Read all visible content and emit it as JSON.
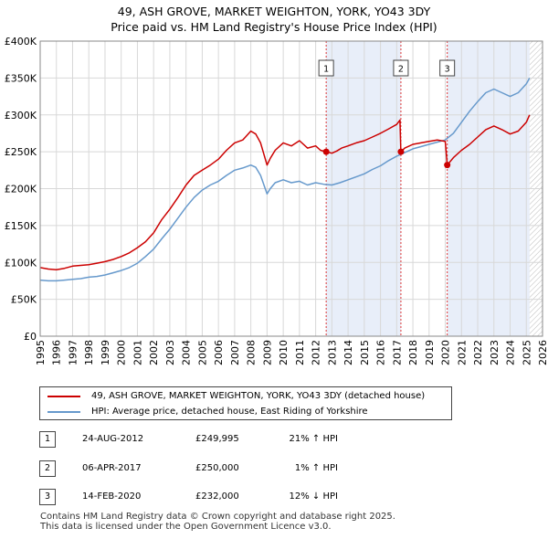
{
  "title_line1": "49, ASH GROVE, MARKET WEIGHTON, YORK, YO43 3DY",
  "title_line2": "Price paid vs. HM Land Registry's House Price Index (HPI)",
  "chart_data": {
    "type": "line",
    "title": "49, ASH GROVE, MARKET WEIGHTON, YORK, YO43 3DY",
    "subtitle": "Price paid vs. HM Land Registry's House Price Index (HPI)",
    "xlabel": "",
    "ylabel": "",
    "xlim": [
      1995,
      2026
    ],
    "ylim": [
      0,
      400000
    ],
    "x_ticks": [
      1995,
      1996,
      1997,
      1998,
      1999,
      2000,
      2001,
      2002,
      2003,
      2004,
      2005,
      2006,
      2007,
      2008,
      2009,
      2010,
      2011,
      2012,
      2013,
      2014,
      2015,
      2016,
      2017,
      2018,
      2019,
      2020,
      2021,
      2022,
      2023,
      2024,
      2025,
      2026
    ],
    "y_ticks": [
      {
        "value": 0,
        "label": "£0"
      },
      {
        "value": 50000,
        "label": "£50K"
      },
      {
        "value": 100000,
        "label": "£100K"
      },
      {
        "value": 150000,
        "label": "£150K"
      },
      {
        "value": 200000,
        "label": "£200K"
      },
      {
        "value": 250000,
        "label": "£250K"
      },
      {
        "value": 300000,
        "label": "£300K"
      },
      {
        "value": 350000,
        "label": "£350K"
      },
      {
        "value": 400000,
        "label": "£400K"
      }
    ],
    "grid": true,
    "shaded_regions": [
      {
        "from": 2012.65,
        "to": 2017.26
      },
      {
        "from": 2020.12,
        "to": 2025.2
      }
    ],
    "hatched_from": 2025.2,
    "series": [
      {
        "name": "49, ASH GROVE, MARKET WEIGHTON, YORK, YO43 3DY (detached house)",
        "color": "#cc0000",
        "x": [
          1995.0,
          1995.5,
          1996.0,
          1996.5,
          1997.0,
          1997.5,
          1998.0,
          1998.5,
          1999.0,
          1999.5,
          2000.0,
          2000.5,
          2001.0,
          2001.5,
          2002.0,
          2002.5,
          2003.0,
          2003.5,
          2004.0,
          2004.5,
          2005.0,
          2005.5,
          2006.0,
          2006.5,
          2007.0,
          2007.5,
          2008.0,
          2008.3,
          2008.6,
          2009.0,
          2009.2,
          2009.5,
          2010.0,
          2010.5,
          2011.0,
          2011.5,
          2012.0,
          2012.3,
          2012.65,
          2013.0,
          2013.3,
          2013.6,
          2014.0,
          2014.5,
          2015.0,
          2015.5,
          2016.0,
          2016.5,
          2017.0,
          2017.2,
          2017.26,
          2017.5,
          2018.0,
          2018.5,
          2019.0,
          2019.5,
          2020.0,
          2020.12,
          2020.5,
          2021.0,
          2021.5,
          2022.0,
          2022.5,
          2023.0,
          2023.5,
          2024.0,
          2024.5,
          2025.0,
          2025.2
        ],
        "values": [
          93000,
          91000,
          90000,
          92000,
          95000,
          96000,
          97000,
          99000,
          101000,
          104000,
          108000,
          113000,
          120000,
          128000,
          140000,
          158000,
          172000,
          188000,
          205000,
          218000,
          225000,
          232000,
          240000,
          252000,
          262000,
          266000,
          278000,
          274000,
          262000,
          232000,
          241000,
          252000,
          262000,
          258000,
          265000,
          255000,
          258000,
          252000,
          249995,
          248000,
          251000,
          255000,
          258000,
          262000,
          265000,
          270000,
          275000,
          281000,
          287000,
          293000,
          250000,
          255000,
          260000,
          262000,
          264000,
          266000,
          264000,
          232000,
          242000,
          252000,
          260000,
          270000,
          280000,
          285000,
          280000,
          274000,
          278000,
          290000,
          300000
        ]
      },
      {
        "name": "HPI: Average price, detached house, East Riding of Yorkshire",
        "color": "#6699cc",
        "x": [
          1995.0,
          1995.5,
          1996.0,
          1996.5,
          1997.0,
          1997.5,
          1998.0,
          1998.5,
          1999.0,
          1999.5,
          2000.0,
          2000.5,
          2001.0,
          2001.5,
          2002.0,
          2002.5,
          2003.0,
          2003.5,
          2004.0,
          2004.5,
          2005.0,
          2005.5,
          2006.0,
          2006.5,
          2007.0,
          2007.5,
          2008.0,
          2008.3,
          2008.6,
          2009.0,
          2009.2,
          2009.5,
          2010.0,
          2010.5,
          2011.0,
          2011.5,
          2012.0,
          2012.5,
          2013.0,
          2013.5,
          2014.0,
          2014.5,
          2015.0,
          2015.5,
          2016.0,
          2016.5,
          2017.0,
          2017.5,
          2018.0,
          2018.5,
          2019.0,
          2019.5,
          2020.0,
          2020.5,
          2021.0,
          2021.5,
          2022.0,
          2022.5,
          2023.0,
          2023.5,
          2024.0,
          2024.5,
          2025.0,
          2025.2
        ],
        "values": [
          76000,
          75000,
          75000,
          76000,
          77000,
          78000,
          80000,
          81000,
          83000,
          86000,
          89000,
          93000,
          99000,
          108000,
          118000,
          132000,
          145000,
          160000,
          175000,
          188000,
          198000,
          205000,
          210000,
          218000,
          225000,
          228000,
          232000,
          229000,
          218000,
          193000,
          200000,
          208000,
          212000,
          208000,
          210000,
          205000,
          208000,
          206000,
          205000,
          208000,
          212000,
          216000,
          220000,
          226000,
          231000,
          238000,
          244000,
          249000,
          254000,
          257000,
          260000,
          263000,
          266000,
          275000,
          290000,
          305000,
          318000,
          330000,
          335000,
          330000,
          325000,
          330000,
          342000,
          350000
        ]
      }
    ],
    "sales": [
      {
        "id": "1",
        "x": 2012.65,
        "value": 249995
      },
      {
        "id": "2",
        "x": 2017.26,
        "value": 250000
      },
      {
        "id": "3",
        "x": 2020.12,
        "value": 232000
      }
    ]
  },
  "legend": {
    "price_label": "49, ASH GROVE, MARKET WEIGHTON, YORK, YO43 3DY (detached house)",
    "hpi_label": "HPI: Average price, detached house, East Riding of Yorkshire",
    "price_color": "#cc0000",
    "hpi_color": "#6699cc"
  },
  "sales_table": [
    {
      "num": "1",
      "date": "24-AUG-2012",
      "price": "£249,995",
      "hpi": "21% ↑ HPI"
    },
    {
      "num": "2",
      "date": "06-APR-2017",
      "price": "£250,000",
      "hpi": "1% ↑ HPI"
    },
    {
      "num": "3",
      "date": "14-FEB-2020",
      "price": "£232,000",
      "hpi": "12% ↓ HPI"
    }
  ],
  "footer": {
    "line1": "Contains HM Land Registry data © Crown copyright and database right 2025.",
    "line2": "This data is licensed under the Open Government Licence v3.0."
  }
}
